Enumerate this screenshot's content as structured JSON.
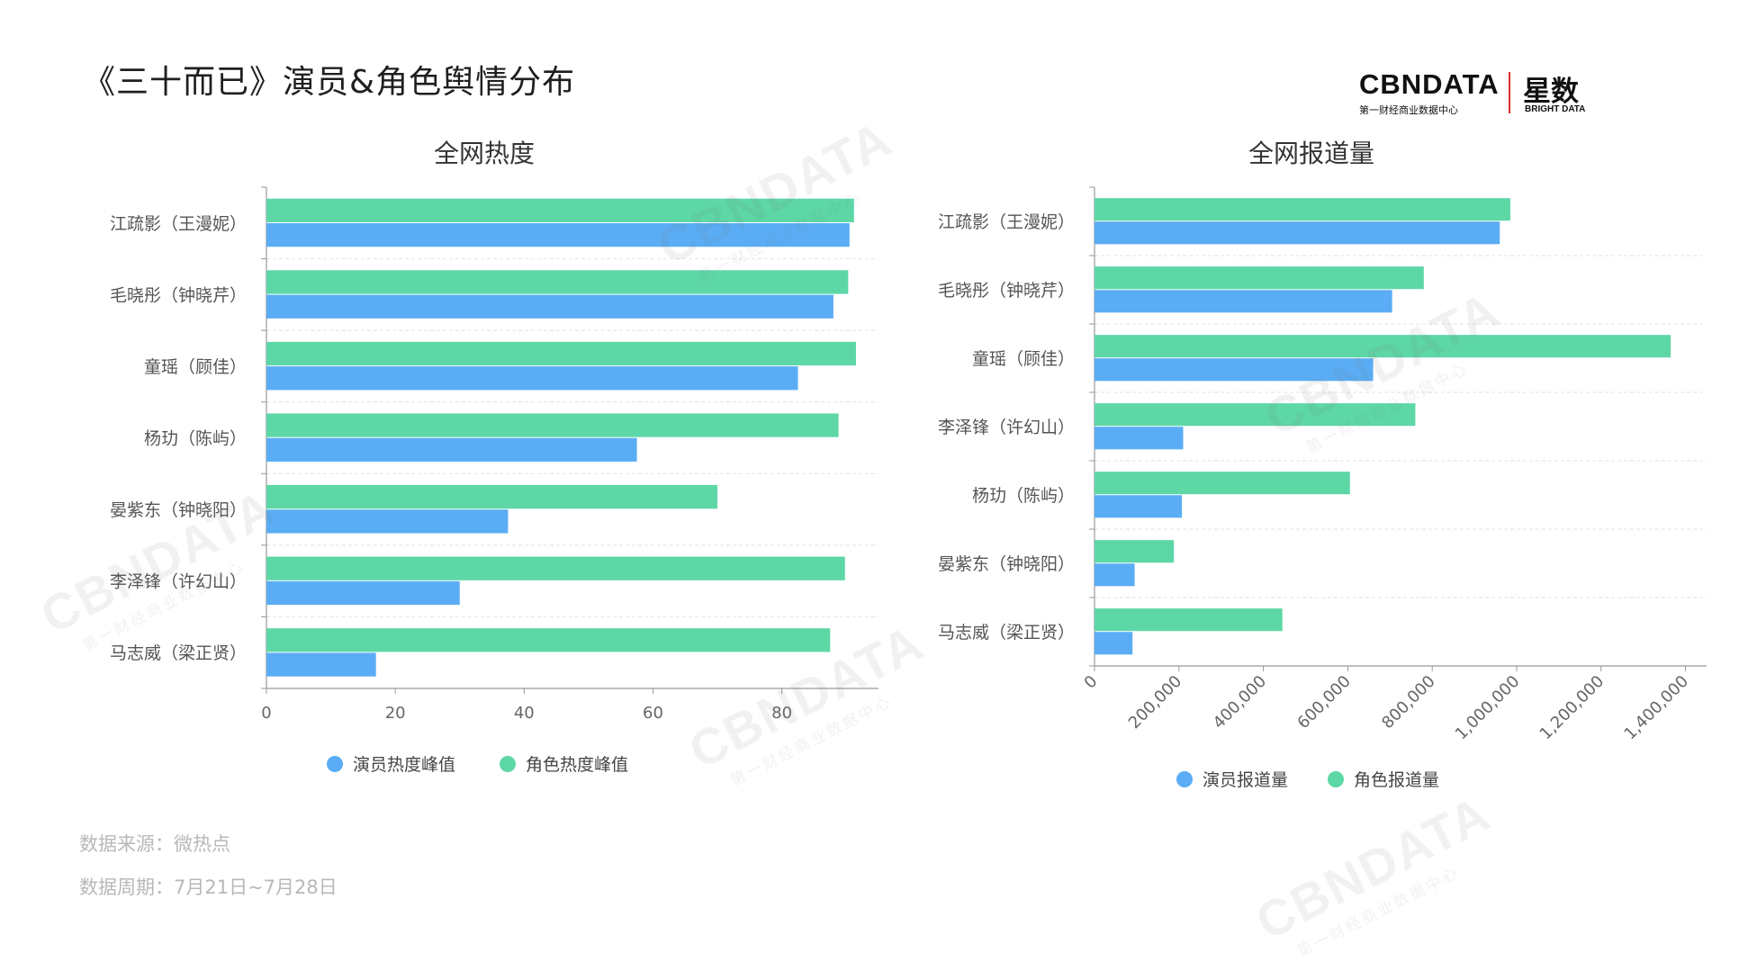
{
  "page": {
    "title": "《三十而已》演员&角色舆情分布",
    "footnote_source": "数据来源：微热点",
    "footnote_period": "数据周期：7月21日~7月28日"
  },
  "logo": {
    "brand": "CBNDATA",
    "brand_sub": "第一财经商业数据中心",
    "brand_cn": "星数",
    "brand_en": "BRIGHT DATA",
    "accent_color": "#d9302c"
  },
  "watermarks": [
    {
      "text": "CBNDATA",
      "sub": "第一财经商业数据中心"
    },
    {
      "text": "CBNDATA",
      "sub": "第一财经商业数据中心"
    },
    {
      "text": "CBNDATA",
      "sub": "第一财经商业数据中心"
    },
    {
      "text": "CBNDATA",
      "sub": "第一财经商业数据中心"
    },
    {
      "text": "CBNDATA",
      "sub": "第一财经商业数据中心"
    }
  ],
  "colors": {
    "actor": "#5aadf4",
    "role": "#5dd7a6"
  },
  "chart_data": [
    {
      "type": "bar",
      "orientation": "horizontal",
      "title": "全网热度",
      "categories": [
        "江疏影（王漫妮）",
        "毛晓彤（钟晓芹）",
        "童瑶（顾佳）",
        "杨玏（陈屿）",
        "晏紫东（钟晓阳）",
        "李泽锋（许幻山）",
        "马志威（梁正贤）"
      ],
      "series": [
        {
          "name": "演员热度峰值",
          "color": "#5aadf4",
          "values": [
            90.5,
            88,
            82.5,
            57.5,
            37.5,
            30,
            17
          ]
        },
        {
          "name": "角色热度峰值",
          "color": "#5dd7a6",
          "values": [
            91.2,
            90.3,
            91.5,
            88.8,
            70,
            89.8,
            87.5
          ]
        }
      ],
      "xlim": [
        0,
        95
      ],
      "xticks": [
        "0",
        "20",
        "40",
        "60",
        "80"
      ],
      "grid": true,
      "legend": "bottom"
    },
    {
      "type": "bar",
      "orientation": "horizontal",
      "title": "全网报道量",
      "categories": [
        "江疏影（王漫妮）",
        "毛晓彤（钟晓芹）",
        "童瑶（顾佳）",
        "李泽锋（许幻山）",
        "杨玏（陈屿）",
        "晏紫东（钟晓阳）",
        "马志威（梁正贤）"
      ],
      "series": [
        {
          "name": "演员报道量",
          "color": "#5aadf4",
          "values": [
            960000,
            705000,
            660000,
            210000,
            207000,
            95000,
            90000
          ]
        },
        {
          "name": "角色报道量",
          "color": "#5dd7a6",
          "values": [
            985000,
            780000,
            1365000,
            760000,
            605000,
            188000,
            445000
          ]
        }
      ],
      "xlim": [
        0,
        1450000
      ],
      "xticks": [
        "0",
        "200,000",
        "400,000",
        "600,000",
        "800,000",
        "1,000,000",
        "1,200,000",
        "1,400,000"
      ],
      "grid": true,
      "legend": "bottom"
    }
  ]
}
